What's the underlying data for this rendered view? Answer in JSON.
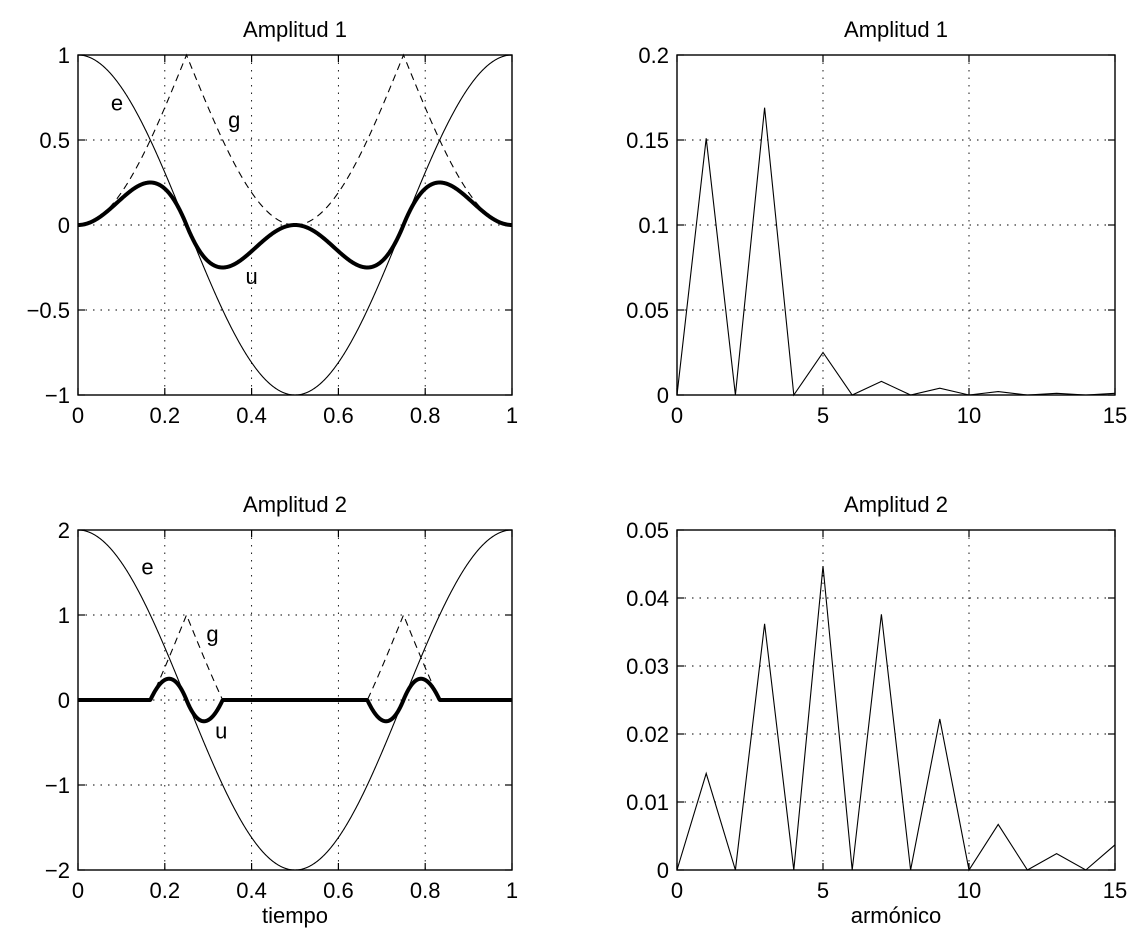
{
  "chart_data": [
    {
      "type": "line",
      "title": "Amplitud 1",
      "xlabel": "",
      "ylabel": "",
      "xlim": [
        0,
        1
      ],
      "ylim": [
        -1,
        1
      ],
      "xticks": [
        "0",
        "0.2",
        "0.4",
        "0.6",
        "0.8",
        "1"
      ],
      "yticks": [
        "−1",
        "−0.5",
        "0",
        "0.5",
        "1"
      ],
      "grid": true,
      "amplitude": 1,
      "series": [
        {
          "name": "e",
          "style": "solid-thin",
          "x": [
            0,
            0.125,
            0.25,
            0.375,
            0.5,
            0.625,
            0.75,
            0.875,
            1
          ],
          "y": [
            1,
            0.707,
            0,
            -0.707,
            -1,
            -0.707,
            0,
            0.707,
            1
          ]
        },
        {
          "name": "g",
          "style": "dashed",
          "x": [
            0,
            0.083,
            0.167,
            0.25,
            0.333,
            0.417,
            0.5,
            0.583,
            0.667,
            0.75,
            0.833,
            0.917,
            1
          ],
          "y": [
            0,
            0.13,
            0.5,
            1,
            0.5,
            0.13,
            0,
            0.13,
            0.5,
            1,
            0.5,
            0.13,
            0
          ]
        },
        {
          "name": "u",
          "style": "solid-bold",
          "x": [
            0,
            0.083,
            0.167,
            0.25,
            0.333,
            0.417,
            0.5,
            0.583,
            0.667,
            0.75,
            0.833,
            0.917,
            1
          ],
          "y": [
            0,
            0.11,
            0.25,
            0,
            -0.25,
            -0.11,
            0,
            -0.11,
            -0.25,
            0,
            0.25,
            0.11,
            0
          ]
        }
      ],
      "annotations": [
        {
          "text": "e",
          "x": 0.09,
          "y": 0.72
        },
        {
          "text": "g",
          "x": 0.36,
          "y": 0.62
        },
        {
          "text": "u",
          "x": 0.4,
          "y": -0.3
        }
      ]
    },
    {
      "type": "line",
      "title": "Amplitud 1",
      "xlabel": "",
      "ylabel": "",
      "xlim": [
        0,
        15
      ],
      "ylim": [
        0,
        0.2
      ],
      "xticks": [
        "0",
        "5",
        "10",
        "15"
      ],
      "yticks": [
        "0",
        "0.05",
        "0.1",
        "0.15",
        "0.2"
      ],
      "grid": true,
      "series": [
        {
          "x": [
            0,
            1,
            2,
            3,
            4,
            5,
            6,
            7,
            8,
            9,
            10,
            11,
            12,
            13,
            14,
            15
          ],
          "y": [
            0,
            0.151,
            0,
            0.169,
            0,
            0.025,
            0,
            0.008,
            0,
            0.004,
            0,
            0.002,
            0,
            0.001,
            0,
            0.001
          ]
        }
      ]
    },
    {
      "type": "line",
      "title": "Amplitud 2",
      "xlabel": "tiempo",
      "ylabel": "",
      "xlim": [
        0,
        1
      ],
      "ylim": [
        -2,
        2
      ],
      "xticks": [
        "0",
        "0.2",
        "0.4",
        "0.6",
        "0.8",
        "1"
      ],
      "yticks": [
        "−2",
        "−1",
        "0",
        "1",
        "2"
      ],
      "grid": true,
      "amplitude": 2,
      "series": [
        {
          "name": "e",
          "style": "solid-thin",
          "x": [
            0,
            0.125,
            0.25,
            0.375,
            0.5,
            0.625,
            0.75,
            0.875,
            1
          ],
          "y": [
            2,
            1.414,
            0,
            -1.414,
            -2,
            -1.414,
            0,
            1.414,
            2
          ]
        },
        {
          "name": "g",
          "style": "dashed",
          "x": [
            0.167,
            0.25,
            0.333,
            0.667,
            0.75,
            0.833
          ],
          "y": [
            0.1,
            1,
            0.1,
            0.1,
            1,
            0.1
          ]
        },
        {
          "name": "u",
          "style": "solid-bold",
          "x": [
            0,
            0.167,
            0.208,
            0.25,
            0.292,
            0.333,
            0.5,
            0.667,
            0.708,
            0.75,
            0.792,
            0.833,
            1
          ],
          "y": [
            0,
            0,
            0.25,
            0,
            -0.25,
            0,
            0,
            0,
            -0.25,
            0,
            0.25,
            0,
            0
          ]
        }
      ],
      "annotations": [
        {
          "text": "e",
          "x": 0.16,
          "y": 1.57
        },
        {
          "text": "g",
          "x": 0.31,
          "y": 0.78
        },
        {
          "text": "u",
          "x": 0.33,
          "y": -0.36
        }
      ]
    },
    {
      "type": "line",
      "title": "Amplitud 2",
      "xlabel": "armónico",
      "ylabel": "",
      "xlim": [
        0,
        15
      ],
      "ylim": [
        0,
        0.05
      ],
      "xticks": [
        "0",
        "5",
        "10",
        "15"
      ],
      "yticks": [
        "0",
        "0.01",
        "0.02",
        "0.03",
        "0.04",
        "0.05"
      ],
      "grid": true,
      "series": [
        {
          "x": [
            0,
            1,
            2,
            3,
            4,
            5,
            6,
            7,
            8,
            9,
            10,
            11,
            12,
            13,
            14,
            15
          ],
          "y": [
            0,
            0.0142,
            0,
            0.0362,
            0,
            0.0447,
            0,
            0.0376,
            0,
            0.0222,
            0,
            0.0067,
            0,
            0.0024,
            0,
            0.0037
          ]
        }
      ]
    }
  ]
}
